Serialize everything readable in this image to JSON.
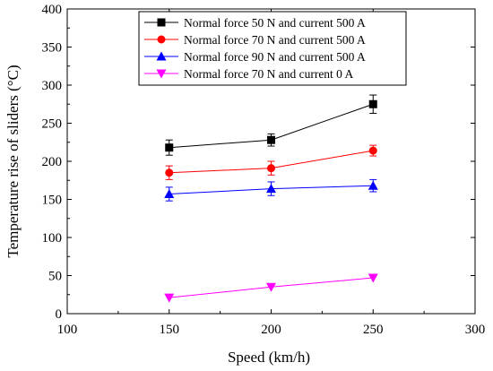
{
  "chart_data": {
    "type": "line",
    "title": "",
    "xlabel": "Speed (km/h)",
    "ylabel": "Temperature rise of sliders (°C)",
    "xlim": [
      100,
      300
    ],
    "ylim": [
      0,
      400
    ],
    "x_ticks": [
      100,
      150,
      200,
      250,
      300
    ],
    "y_ticks": [
      0,
      50,
      100,
      150,
      200,
      250,
      300,
      350,
      400
    ],
    "grid": false,
    "legend_position": "top-right",
    "series": [
      {
        "name": "Normal force 50 N and current 500 A",
        "color": "#000000",
        "marker": "square",
        "x": [
          150,
          200,
          250
        ],
        "y": [
          218,
          228,
          275
        ],
        "error": [
          10,
          8,
          12
        ]
      },
      {
        "name": "Normal force 70 N and current 500 A",
        "color": "#ff0000",
        "marker": "circle",
        "x": [
          150,
          200,
          250
        ],
        "y": [
          185,
          191,
          214
        ],
        "error": [
          9,
          9,
          7
        ]
      },
      {
        "name": "Normal force 90 N and current 500 A",
        "color": "#0000ff",
        "marker": "triangle-up",
        "x": [
          150,
          200,
          250
        ],
        "y": [
          157,
          164,
          168
        ],
        "error": [
          9,
          9,
          8
        ]
      },
      {
        "name": "Normal force 70 N and current 0 A",
        "color": "#ff00ff",
        "marker": "triangle-down",
        "x": [
          150,
          200,
          250
        ],
        "y": [
          21,
          35,
          47
        ],
        "error": [
          0,
          0,
          0
        ]
      }
    ]
  }
}
